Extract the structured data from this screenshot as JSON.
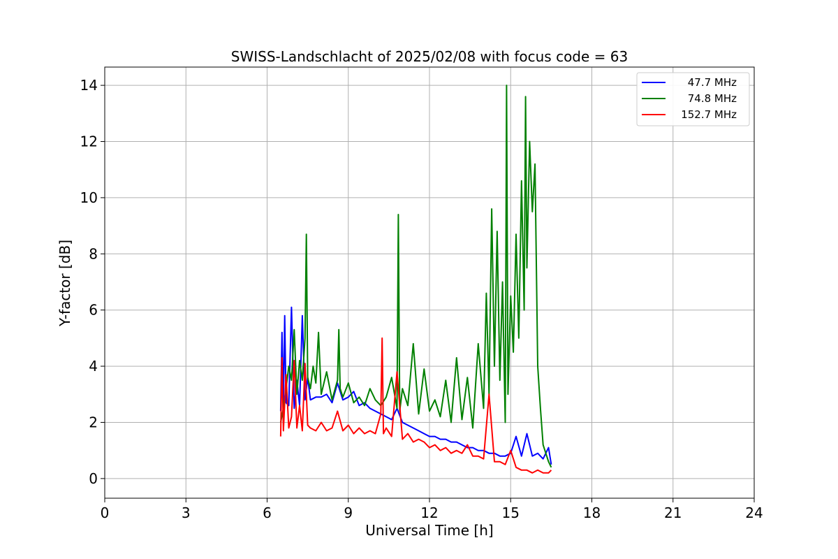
{
  "chart_data": {
    "type": "line",
    "title": "SWISS-Landschlacht of 2025/02/08 with focus code = 63",
    "xlabel": "Universal Time [h]",
    "ylabel": "Y-factor [dB]",
    "xlim": [
      0,
      24
    ],
    "ylim": [
      -0.7,
      14.65
    ],
    "xticks": [
      0,
      3,
      6,
      9,
      12,
      15,
      18,
      21,
      24
    ],
    "yticks": [
      0,
      2,
      4,
      6,
      8,
      10,
      12,
      14
    ],
    "grid": true,
    "legend_position": "top-right",
    "series": [
      {
        "name": "47.7 MHz",
        "color": "#0000ff",
        "x": [
          6.5,
          6.55,
          6.6,
          6.65,
          6.7,
          6.8,
          6.9,
          7.0,
          7.1,
          7.2,
          7.3,
          7.4,
          7.5,
          7.6,
          7.8,
          8.0,
          8.2,
          8.4,
          8.6,
          8.8,
          9.0,
          9.2,
          9.4,
          9.6,
          9.8,
          10.0,
          10.2,
          10.4,
          10.6,
          10.8,
          11.0,
          11.2,
          11.4,
          11.6,
          11.8,
          12.0,
          12.2,
          12.4,
          12.6,
          12.8,
          13.0,
          13.2,
          13.4,
          13.6,
          13.8,
          14.0,
          14.2,
          14.4,
          14.6,
          14.8,
          15.0,
          15.2,
          15.4,
          15.6,
          15.8,
          16.0,
          16.2,
          16.4,
          16.5
        ],
        "y": [
          2.4,
          5.2,
          2.6,
          5.8,
          2.7,
          2.6,
          6.1,
          2.5,
          3.5,
          2.6,
          5.8,
          2.8,
          3.6,
          2.8,
          2.9,
          2.9,
          3.0,
          2.7,
          3.4,
          2.8,
          2.9,
          3.1,
          2.6,
          2.7,
          2.5,
          2.4,
          2.3,
          2.2,
          2.1,
          2.5,
          2.0,
          1.9,
          1.8,
          1.7,
          1.6,
          1.5,
          1.5,
          1.4,
          1.4,
          1.3,
          1.3,
          1.2,
          1.1,
          1.1,
          1.0,
          1.0,
          0.9,
          0.9,
          0.8,
          0.8,
          0.9,
          1.5,
          0.8,
          1.6,
          0.8,
          0.9,
          0.7,
          1.1,
          0.5
        ]
      },
      {
        "name": "74.8 MHz",
        "color": "#008000",
        "x": [
          6.5,
          6.6,
          6.7,
          6.8,
          6.9,
          7.0,
          7.1,
          7.2,
          7.3,
          7.4,
          7.45,
          7.5,
          7.6,
          7.7,
          7.8,
          7.9,
          8.0,
          8.2,
          8.4,
          8.6,
          8.65,
          8.7,
          8.8,
          9.0,
          9.2,
          9.4,
          9.6,
          9.8,
          10.0,
          10.2,
          10.4,
          10.6,
          10.8,
          10.85,
          10.9,
          11.0,
          11.2,
          11.4,
          11.6,
          11.8,
          12.0,
          12.2,
          12.4,
          12.6,
          12.8,
          13.0,
          13.2,
          13.4,
          13.6,
          13.8,
          14.0,
          14.1,
          14.2,
          14.3,
          14.4,
          14.5,
          14.6,
          14.7,
          14.8,
          14.85,
          14.9,
          15.0,
          15.1,
          15.2,
          15.3,
          15.4,
          15.5,
          15.55,
          15.6,
          15.7,
          15.8,
          15.9,
          16.0,
          16.1,
          16.2,
          16.3,
          16.4,
          16.5
        ],
        "y": [
          2.0,
          2.5,
          3.2,
          4.0,
          3.5,
          5.3,
          3.0,
          4.2,
          3.5,
          5.0,
          8.7,
          3.6,
          3.2,
          4.0,
          3.4,
          5.2,
          3.0,
          3.8,
          2.8,
          3.5,
          5.3,
          3.2,
          2.9,
          3.4,
          2.7,
          2.9,
          2.6,
          3.2,
          2.8,
          2.6,
          2.9,
          3.6,
          2.5,
          9.4,
          2.4,
          3.2,
          2.6,
          4.8,
          2.3,
          3.9,
          2.4,
          2.8,
          2.2,
          3.5,
          2.0,
          4.3,
          2.1,
          3.6,
          1.8,
          4.8,
          2.5,
          6.6,
          3.0,
          9.6,
          4.0,
          8.8,
          3.5,
          7.0,
          2.0,
          14.0,
          3.0,
          6.5,
          4.5,
          8.7,
          5.0,
          10.6,
          6.0,
          13.6,
          7.5,
          12.0,
          9.5,
          11.2,
          4.0,
          2.5,
          1.2,
          0.9,
          0.6,
          0.4
        ]
      },
      {
        "name": "152.7 MHz",
        "color": "#ff0000",
        "x": [
          6.5,
          6.55,
          6.6,
          6.7,
          6.8,
          6.9,
          7.0,
          7.1,
          7.2,
          7.3,
          7.4,
          7.5,
          7.6,
          7.8,
          8.0,
          8.2,
          8.4,
          8.6,
          8.8,
          9.0,
          9.2,
          9.4,
          9.6,
          9.8,
          10.0,
          10.2,
          10.25,
          10.3,
          10.4,
          10.6,
          10.8,
          11.0,
          11.2,
          11.4,
          11.6,
          11.8,
          12.0,
          12.2,
          12.4,
          12.6,
          12.8,
          13.0,
          13.2,
          13.4,
          13.6,
          13.8,
          14.0,
          14.2,
          14.4,
          14.6,
          14.8,
          15.0,
          15.2,
          15.4,
          15.6,
          15.8,
          16.0,
          16.2,
          16.4,
          16.5
        ],
        "y": [
          1.5,
          4.3,
          1.7,
          3.7,
          1.8,
          2.2,
          4.2,
          1.8,
          2.6,
          1.7,
          4.1,
          1.9,
          1.8,
          1.7,
          2.0,
          1.7,
          1.8,
          2.4,
          1.7,
          1.9,
          1.6,
          1.8,
          1.6,
          1.7,
          1.6,
          2.3,
          5.0,
          1.6,
          1.8,
          1.5,
          3.8,
          1.4,
          1.6,
          1.3,
          1.4,
          1.3,
          1.1,
          1.2,
          1.0,
          1.1,
          0.9,
          1.0,
          0.9,
          1.2,
          0.8,
          0.8,
          0.7,
          3.0,
          0.6,
          0.6,
          0.5,
          1.0,
          0.4,
          0.3,
          0.3,
          0.2,
          0.3,
          0.2,
          0.2,
          0.3
        ]
      }
    ]
  }
}
